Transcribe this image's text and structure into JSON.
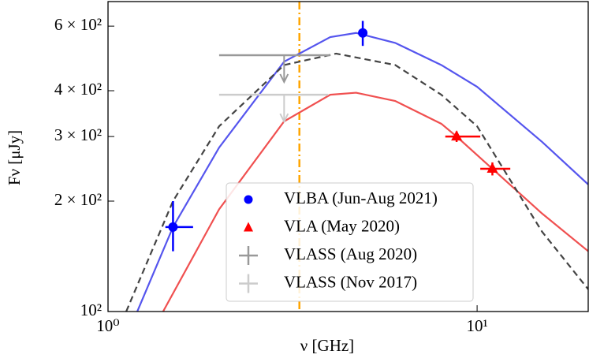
{
  "chart_data": {
    "type": "scatter",
    "x_label": "ν [GHz]",
    "y_label": "Fν [μJy]",
    "log_x": true,
    "log_y": true,
    "xlim": [
      1,
      20
    ],
    "ylim": [
      100,
      700
    ],
    "xticks": [
      {
        "value": 1,
        "label": "10⁰"
      },
      {
        "value": 10,
        "label": "10¹"
      }
    ],
    "yticks": [
      {
        "value": 100,
        "label": "10²"
      },
      {
        "value": 200,
        "label": "2 × 10²"
      },
      {
        "value": 300,
        "label": "3 × 10²"
      },
      {
        "value": 400,
        "label": "4 × 10²"
      },
      {
        "value": 600,
        "label": "6 × 10²"
      }
    ],
    "vline": {
      "x": 3.3,
      "color": "#ffa500"
    },
    "curves": [
      {
        "color": "#5555ee",
        "style": "solid",
        "x": [
          1.2,
          1.5,
          2,
          3,
          4,
          4.7,
          6,
          8,
          10,
          15,
          20
        ],
        "values": [
          100,
          170,
          280,
          480,
          560,
          575,
          540,
          470,
          410,
          290,
          222
        ]
      },
      {
        "color": "#f05050",
        "style": "solid",
        "x": [
          1.41,
          2,
          3,
          4,
          4.7,
          6,
          8,
          8.8,
          11,
          15,
          20
        ],
        "values": [
          100,
          190,
          330,
          390,
          395,
          375,
          325,
          300,
          245,
          185,
          146
        ]
      },
      {
        "color": "#444444",
        "style": "dashed",
        "x": [
          1.12,
          1.5,
          2,
          3,
          4.15,
          6,
          8,
          10,
          15,
          20
        ],
        "values": [
          100,
          200,
          320,
          470,
          505,
          470,
          390,
          320,
          165,
          115
        ]
      }
    ],
    "series": [
      {
        "name": "VLBA (Jun-Aug 2021)",
        "color": "#0000ff",
        "marker": "circle",
        "x": [
          1.5,
          4.9
        ],
        "values": [
          170,
          575
        ],
        "xrange": [
          [
            1.43,
            1.7
          ],
          [
            4.9,
            4.9
          ]
        ],
        "yrange": [
          [
            146,
            200
          ],
          [
            530,
            620
          ]
        ]
      },
      {
        "name": "VLA (May 2020)",
        "color": "#ff0000",
        "marker": "triangle",
        "x": [
          8.8,
          11
        ],
        "values": [
          300,
          245
        ],
        "xrange": [
          [
            8.2,
            10.2
          ],
          [
            10.2,
            12.3
          ]
        ],
        "yrange": [
          [
            290,
            310
          ],
          [
            235,
            255
          ]
        ]
      },
      {
        "name": "VLASS (Aug 2020)",
        "color": "#999999",
        "marker": "upper-limit",
        "x": [
          3
        ],
        "values": [
          500
        ],
        "xrange": [
          [
            2,
            4
          ]
        ]
      },
      {
        "name": "VLASS (Nov 2017)",
        "color": "#cccccc",
        "marker": "upper-limit",
        "x": [
          3
        ],
        "values": [
          390
        ],
        "xrange": [
          [
            2,
            3.95
          ]
        ]
      }
    ]
  }
}
